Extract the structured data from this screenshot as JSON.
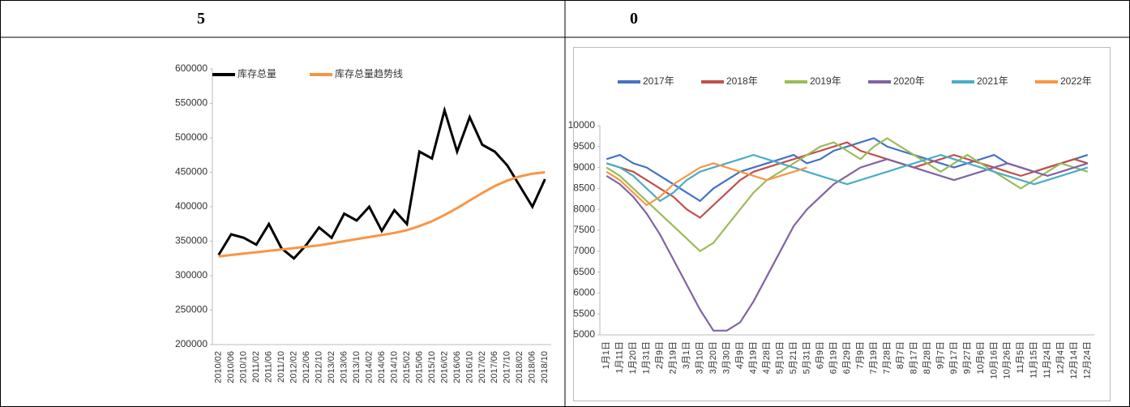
{
  "table": {
    "header": [
      "5",
      "0"
    ]
  },
  "chart_data": [
    {
      "type": "line",
      "categories": [
        "2010/02",
        "2010/06",
        "2010/10",
        "2011/02",
        "2011/06",
        "2011/10",
        "2012/02",
        "2012/06",
        "2012/10",
        "2013/02",
        "2013/06",
        "2013/10",
        "2014/02",
        "2014/06",
        "2014/10",
        "2015/02",
        "2015/06",
        "2015/10",
        "2016/02",
        "2016/06",
        "2016/10",
        "2017/02",
        "2017/06",
        "2017/10",
        "2018/02",
        "2018/06",
        "2018/10"
      ],
      "series": [
        {
          "name": "库存总量",
          "color": "#000000",
          "values": [
            330000,
            360000,
            355000,
            345000,
            375000,
            340000,
            325000,
            345000,
            370000,
            355000,
            390000,
            380000,
            400000,
            365000,
            395000,
            375000,
            480000,
            470000,
            540000,
            480000,
            530000,
            490000,
            480000,
            460000,
            430000,
            400000,
            440000
          ]
        },
        {
          "name": "库存总量趋势线",
          "color": "#f79646",
          "values": [
            328000,
            330000,
            332000,
            334000,
            336000,
            338000,
            340000,
            342000,
            344000,
            347000,
            350000,
            353000,
            356000,
            359000,
            362000,
            366000,
            372000,
            379000,
            388000,
            398000,
            409000,
            420000,
            430000,
            438000,
            444000,
            448000,
            450000
          ]
        }
      ],
      "ylim": [
        200000,
        600000
      ],
      "yticks": [
        200000,
        250000,
        300000,
        350000,
        400000,
        450000,
        500000,
        550000,
        600000
      ],
      "grid": false
    },
    {
      "type": "line",
      "categories": [
        "1月1日",
        "1月11日",
        "1月20日",
        "1月31日",
        "2月9日",
        "2月19日",
        "3月1日",
        "3月10日",
        "3月20日",
        "3月30日",
        "4月9日",
        "4月19日",
        "4月28日",
        "5月10日",
        "5月21日",
        "5月31日",
        "6月9日",
        "6月19日",
        "6月29日",
        "7月9日",
        "7月19日",
        "7月28日",
        "8月7日",
        "8月17日",
        "8月28日",
        "9月7日",
        "9月17日",
        "9月27日",
        "10月6日",
        "10月16日",
        "10月26日",
        "11月5日",
        "11月15日",
        "11月24日",
        "12月4日",
        "12月14日",
        "12月24日"
      ],
      "series": [
        {
          "name": "2017年",
          "color": "#4472c4",
          "values": [
            9200,
            9300,
            9100,
            9000,
            8800,
            8600,
            8400,
            8200,
            8500,
            8700,
            8900,
            9000,
            9100,
            9200,
            9300,
            9100,
            9200,
            9400,
            9500,
            9600,
            9700,
            9500,
            9400,
            9300,
            9200,
            9100,
            9000,
            9100,
            9200,
            9300,
            9100,
            9000,
            8900,
            9000,
            9100,
            9200,
            9300
          ]
        },
        {
          "name": "2018年",
          "color": "#c0504d",
          "values": [
            9100,
            9000,
            8900,
            8700,
            8500,
            8300,
            8000,
            7800,
            8100,
            8400,
            8700,
            8900,
            9000,
            9100,
            9200,
            9300,
            9400,
            9500,
            9600,
            9400,
            9300,
            9200,
            9100,
            9000,
            9100,
            9200,
            9300,
            9200,
            9100,
            9000,
            8900,
            8800,
            8900,
            9000,
            9100,
            9200,
            9100
          ]
        },
        {
          "name": "2019年",
          "color": "#9bbb59",
          "values": [
            9000,
            8800,
            8500,
            8200,
            7900,
            7600,
            7300,
            7000,
            7200,
            7600,
            8000,
            8400,
            8700,
            8900,
            9100,
            9300,
            9500,
            9600,
            9400,
            9200,
            9500,
            9700,
            9500,
            9300,
            9100,
            8900,
            9100,
            9300,
            9100,
            8900,
            8700,
            8500,
            8700,
            8900,
            9100,
            9000,
            8900
          ]
        },
        {
          "name": "2020年",
          "color": "#8064a2",
          "values": [
            8800,
            8600,
            8300,
            7900,
            7400,
            6800,
            6200,
            5600,
            5100,
            5100,
            5300,
            5800,
            6400,
            7000,
            7600,
            8000,
            8300,
            8600,
            8800,
            9000,
            9100,
            9200,
            9100,
            9000,
            8900,
            8800,
            8700,
            8800,
            8900,
            9000,
            9100,
            9000,
            8900,
            8800,
            8900,
            9000,
            9100
          ]
        },
        {
          "name": "2021年",
          "color": "#4bacc6",
          "values": [
            9100,
            9000,
            8800,
            8500,
            8200,
            8400,
            8700,
            8900,
            9000,
            9100,
            9200,
            9300,
            9200,
            9100,
            9000,
            8900,
            8800,
            8700,
            8600,
            8700,
            8800,
            8900,
            9000,
            9100,
            9200,
            9300,
            9200,
            9100,
            9000,
            8900,
            8800,
            8700,
            8600,
            8700,
            8800,
            8900,
            9000
          ]
        },
        {
          "name": "2022年",
          "color": "#f79646",
          "values": [
            8900,
            8700,
            8400,
            8100,
            8300,
            8600,
            8800,
            9000,
            9100,
            9000,
            8900,
            8800,
            8700,
            8800,
            8900,
            9000,
            null,
            null,
            null,
            null,
            null,
            null,
            null,
            null,
            null,
            null,
            null,
            null,
            null,
            null,
            null,
            null,
            null,
            null,
            null,
            null,
            null
          ]
        }
      ],
      "ylim": [
        5000,
        10000
      ],
      "yticks": [
        5000,
        5500,
        6000,
        6500,
        7000,
        7500,
        8000,
        8500,
        9000,
        9500,
        10000
      ],
      "grid": false
    }
  ]
}
